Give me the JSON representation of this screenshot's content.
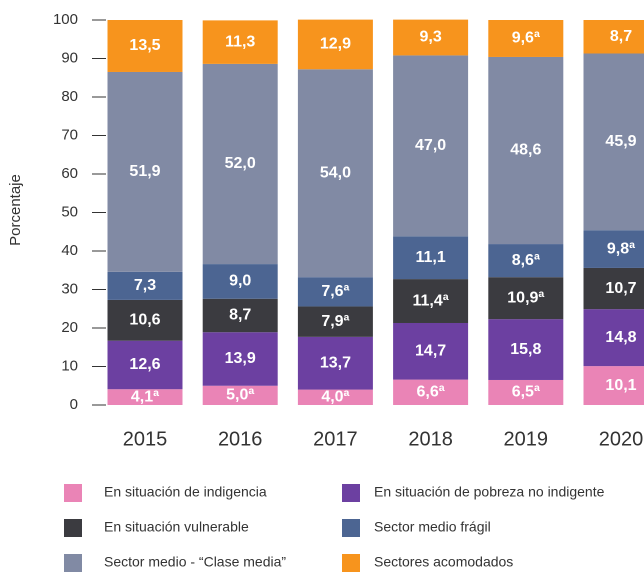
{
  "chart_data": {
    "type": "stacked_bar",
    "y_label": "Porcentaje",
    "categories": [
      "2015",
      "2016",
      "2017",
      "2018",
      "2019",
      "2020"
    ],
    "ylim": [
      0,
      100
    ],
    "yticks": [
      0,
      10,
      20,
      30,
      40,
      50,
      60,
      70,
      80,
      90,
      100
    ],
    "grid": false,
    "legend_position": "bottom",
    "series": [
      {
        "name": "En situación de indigencia",
        "color": "#ea84b6",
        "values": [
          4.1,
          5.0,
          4.0,
          6.6,
          6.5,
          10.1
        ],
        "value_labels": [
          "4,1ª",
          "5,0ª",
          "4,0ª",
          "6,6ª",
          "6,5ª",
          "10,1"
        ]
      },
      {
        "name": "En situación de pobreza no indigente",
        "color": "#6c40a1",
        "values": [
          12.6,
          13.9,
          13.7,
          14.7,
          15.8,
          14.8
        ],
        "value_labels": [
          "12,6",
          "13,9",
          "13,7",
          "14,7",
          "15,8",
          "14,8"
        ]
      },
      {
        "name": "En situación vulnerable",
        "color": "#3b3b40",
        "values": [
          10.6,
          8.7,
          7.9,
          11.4,
          10.9,
          10.7
        ],
        "value_labels": [
          "10,6",
          "8,7",
          "7,9ª",
          "11,4ª",
          "10,9ª",
          "10,7"
        ]
      },
      {
        "name": "Sector medio frágil",
        "color": "#4c6592",
        "values": [
          7.3,
          9.0,
          7.6,
          11.1,
          8.6,
          9.8
        ],
        "value_labels": [
          "7,3",
          "9,0",
          "7,6ª",
          "11,1",
          "8,6ª",
          "9,8ª"
        ]
      },
      {
        "name": "Sector medio - “Clase media”",
        "color": "#818aa4",
        "values": [
          51.9,
          52.0,
          54.0,
          47.0,
          48.6,
          45.9
        ],
        "value_labels": [
          "51,9",
          "52,0",
          "54,0",
          "47,0",
          "48,6",
          "45,9"
        ]
      },
      {
        "name": "Sectores acomodados",
        "color": "#f7941d",
        "values": [
          13.5,
          11.3,
          12.9,
          9.3,
          9.6,
          8.7
        ],
        "value_labels": [
          "13,5",
          "11,3",
          "12,9",
          "9,3",
          "9,6ª",
          "8,7"
        ]
      }
    ]
  }
}
